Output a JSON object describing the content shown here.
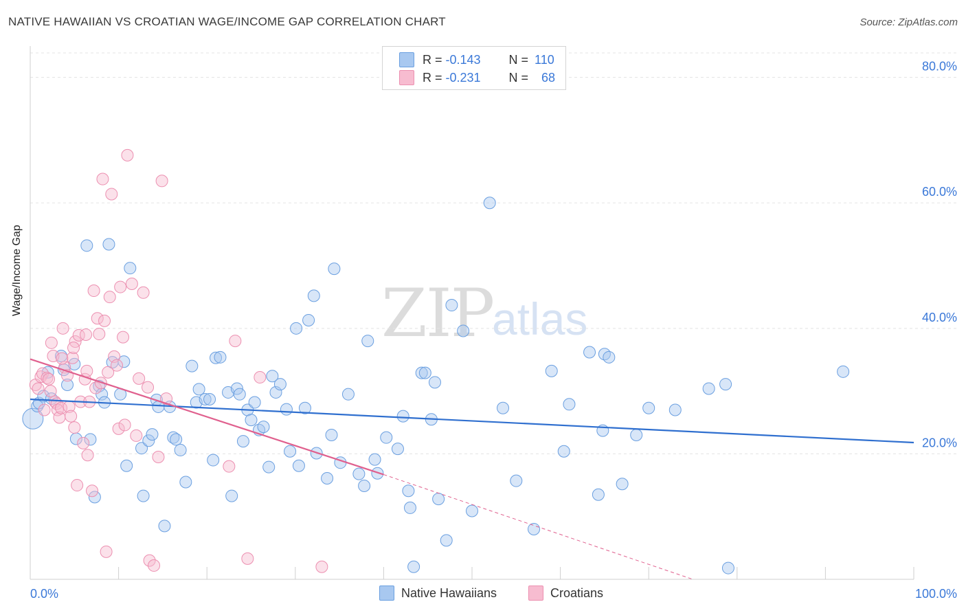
{
  "header": {
    "title": "NATIVE HAWAIIAN VS CROATIAN WAGE/INCOME GAP CORRELATION CHART",
    "source": "Source: ZipAtlas.com"
  },
  "watermark": {
    "zip": "ZIP",
    "atlas": "atlas"
  },
  "legend_top": {
    "row1": {
      "r_label": "R = ",
      "r_value": "-0.143",
      "n_label": "N = ",
      "n_value": "110"
    },
    "row2": {
      "r_label": "R = ",
      "r_value": "-0.231",
      "n_label": "N = ",
      "n_value": "68"
    }
  },
  "legend_bottom": {
    "series1": "Native Hawaiians",
    "series2": "Croatians"
  },
  "colors": {
    "blue_fill": "#a8c8f0",
    "blue_stroke": "#6a9fe0",
    "blue_line": "#2f6fcf",
    "pink_fill": "#f7bcd0",
    "pink_stroke": "#ec8fb0",
    "pink_line": "#e0608e",
    "axis_text": "#3a78d8",
    "grid": "#e3e3e3"
  },
  "chart_data": {
    "type": "scatter",
    "title": "NATIVE HAWAIIAN VS CROATIAN WAGE/INCOME GAP CORRELATION CHART",
    "xlabel": "",
    "ylabel": "Wage/Income Gap",
    "xlim": [
      0,
      100
    ],
    "ylim": [
      0,
      85
    ],
    "x_tick_labels": [
      "0.0%",
      "100.0%"
    ],
    "y_ticks": [
      20,
      40,
      60,
      80
    ],
    "y_tick_labels": [
      "20.0%",
      "40.0%",
      "60.0%",
      "80.0%"
    ],
    "grid": true,
    "legend_placement": "top-center",
    "series": [
      {
        "name": "Native Hawaiians",
        "r": -0.143,
        "n": 110,
        "trend": {
          "x": [
            0,
            100
          ],
          "y": [
            28.7,
            21.8
          ]
        },
        "points": [
          [
            0.3,
            25.6
          ],
          [
            0.8,
            27.6
          ],
          [
            1,
            28.1
          ],
          [
            1.5,
            29.2
          ],
          [
            2,
            33.0
          ],
          [
            2.4,
            28.8
          ],
          [
            3.5,
            35.6
          ],
          [
            3.8,
            33.4
          ],
          [
            4.2,
            31.0
          ],
          [
            5,
            34.3
          ],
          [
            5.2,
            22.4
          ],
          [
            6.4,
            53.2
          ],
          [
            6.8,
            22.3
          ],
          [
            7.3,
            13.1
          ],
          [
            7.8,
            30.8
          ],
          [
            8.1,
            29.5
          ],
          [
            8.4,
            28.2
          ],
          [
            8.9,
            53.4
          ],
          [
            9.3,
            34.6
          ],
          [
            10.2,
            29.5
          ],
          [
            10.6,
            34.7
          ],
          [
            10.9,
            18.1
          ],
          [
            11.3,
            49.6
          ],
          [
            12.6,
            20.9
          ],
          [
            12.8,
            13.3
          ],
          [
            13.4,
            22.1
          ],
          [
            13.8,
            23.1
          ],
          [
            14.3,
            28.6
          ],
          [
            14.5,
            27.5
          ],
          [
            15.2,
            8.5
          ],
          [
            15.8,
            27.5
          ],
          [
            16.2,
            22.6
          ],
          [
            16.5,
            22.3
          ],
          [
            17,
            20.6
          ],
          [
            17.6,
            15.5
          ],
          [
            18.3,
            34.0
          ],
          [
            18.8,
            28.2
          ],
          [
            19.1,
            30.3
          ],
          [
            19.8,
            28.7
          ],
          [
            20.3,
            28.7
          ],
          [
            20.7,
            19.0
          ],
          [
            21,
            35.3
          ],
          [
            21.5,
            35.4
          ],
          [
            22.4,
            29.8
          ],
          [
            22.8,
            13.3
          ],
          [
            23.4,
            30.4
          ],
          [
            23.7,
            29.5
          ],
          [
            24.1,
            22.0
          ],
          [
            24.6,
            27.0
          ],
          [
            25,
            25.4
          ],
          [
            25.4,
            28.2
          ],
          [
            25.9,
            23.8
          ],
          [
            26.4,
            24.3
          ],
          [
            27,
            17.9
          ],
          [
            27.4,
            32.4
          ],
          [
            27.8,
            29.8
          ],
          [
            28.3,
            31.1
          ],
          [
            29,
            27.1
          ],
          [
            29.4,
            20.4
          ],
          [
            30.1,
            40.0
          ],
          [
            30.4,
            18.1
          ],
          [
            31.1,
            27.3
          ],
          [
            31.5,
            41.3
          ],
          [
            32.1,
            45.2
          ],
          [
            32.4,
            20.1
          ],
          [
            33.6,
            16.1
          ],
          [
            34.1,
            23.0
          ],
          [
            34.4,
            49.5
          ],
          [
            35.1,
            18.6
          ],
          [
            36,
            29.5
          ],
          [
            37.2,
            16.8
          ],
          [
            37.8,
            14.9
          ],
          [
            38.2,
            38.0
          ],
          [
            39,
            19.1
          ],
          [
            39.3,
            16.9
          ],
          [
            40.3,
            22.6
          ],
          [
            41.6,
            20.8
          ],
          [
            42.2,
            26.0
          ],
          [
            42.8,
            14.1
          ],
          [
            43,
            11.4
          ],
          [
            43.4,
            2.0
          ],
          [
            44.3,
            32.9
          ],
          [
            44.7,
            32.9
          ],
          [
            45.4,
            25.5
          ],
          [
            45.8,
            31.4
          ],
          [
            46.2,
            12.8
          ],
          [
            47.1,
            6.2
          ],
          [
            47.7,
            43.7
          ],
          [
            49,
            39.6
          ],
          [
            50,
            10.9
          ],
          [
            52,
            60.0
          ],
          [
            53.5,
            27.3
          ],
          [
            55,
            15.7
          ],
          [
            57,
            8.0
          ],
          [
            59,
            33.2
          ],
          [
            60.4,
            20.4
          ],
          [
            61,
            27.9
          ],
          [
            63.3,
            36.2
          ],
          [
            64.3,
            13.5
          ],
          [
            64.8,
            23.7
          ],
          [
            65,
            35.9
          ],
          [
            65.5,
            35.4
          ],
          [
            67,
            15.2
          ],
          [
            68.6,
            23.0
          ],
          [
            70,
            27.3
          ],
          [
            73,
            27.0
          ],
          [
            76.8,
            30.4
          ],
          [
            78.7,
            31.1
          ],
          [
            79,
            1.8
          ],
          [
            92,
            33.1
          ]
        ]
      },
      {
        "name": "Croatians",
        "r": -0.231,
        "n": 68,
        "trend": {
          "x": [
            0,
            40
          ],
          "y": [
            35.1,
            16.7
          ]
        },
        "trend_dashed": {
          "x": [
            40,
            75
          ],
          "y": [
            16.7,
            0
          ]
        },
        "points": [
          [
            0.6,
            31.0
          ],
          [
            0.9,
            30.4
          ],
          [
            1.2,
            32.3
          ],
          [
            1.4,
            32.8
          ],
          [
            1.6,
            27.0
          ],
          [
            1.9,
            32.1
          ],
          [
            2.1,
            31.9
          ],
          [
            2.3,
            30.0
          ],
          [
            2.4,
            37.7
          ],
          [
            2.6,
            35.6
          ],
          [
            2.8,
            28.3
          ],
          [
            3.0,
            28.0
          ],
          [
            3.1,
            27.0
          ],
          [
            3.3,
            25.8
          ],
          [
            3.5,
            27.3
          ],
          [
            3.7,
            40.0
          ],
          [
            3.9,
            33.8
          ],
          [
            4.2,
            32.5
          ],
          [
            4.4,
            27.5
          ],
          [
            4.6,
            26.0
          ],
          [
            4.8,
            35.3
          ],
          [
            5.0,
            24.2
          ],
          [
            5.1,
            37.9
          ],
          [
            5.3,
            15.0
          ],
          [
            5.5,
            38.9
          ],
          [
            5.7,
            28.3
          ],
          [
            6.0,
            21.7
          ],
          [
            6.2,
            31.9
          ],
          [
            6.4,
            33.2
          ],
          [
            6.5,
            19.8
          ],
          [
            6.7,
            28.3
          ],
          [
            7.0,
            14.1
          ],
          [
            7.2,
            46.0
          ],
          [
            7.4,
            30.5
          ],
          [
            7.6,
            41.6
          ],
          [
            7.8,
            39.1
          ],
          [
            8.0,
            31.3
          ],
          [
            8.2,
            63.8
          ],
          [
            8.4,
            41.2
          ],
          [
            8.6,
            4.4
          ],
          [
            8.8,
            33.0
          ],
          [
            9.0,
            45.0
          ],
          [
            9.2,
            61.4
          ],
          [
            9.5,
            35.5
          ],
          [
            9.8,
            34.1
          ],
          [
            10.0,
            24.0
          ],
          [
            10.2,
            46.6
          ],
          [
            10.5,
            38.6
          ],
          [
            10.7,
            24.6
          ],
          [
            11.0,
            67.6
          ],
          [
            11.5,
            47.1
          ],
          [
            12.0,
            22.9
          ],
          [
            12.3,
            32.0
          ],
          [
            12.8,
            45.7
          ],
          [
            13.3,
            30.6
          ],
          [
            13.5,
            3.0
          ],
          [
            14.0,
            2.2
          ],
          [
            14.5,
            19.5
          ],
          [
            14.9,
            63.5
          ],
          [
            15.4,
            28.8
          ],
          [
            22.5,
            18.0
          ],
          [
            23.2,
            38.0
          ],
          [
            24.6,
            3.3
          ],
          [
            26,
            32.2
          ],
          [
            33,
            2.0
          ],
          [
            6.3,
            39.0
          ],
          [
            4.9,
            36.9
          ],
          [
            3.6,
            35.2
          ]
        ]
      }
    ]
  }
}
